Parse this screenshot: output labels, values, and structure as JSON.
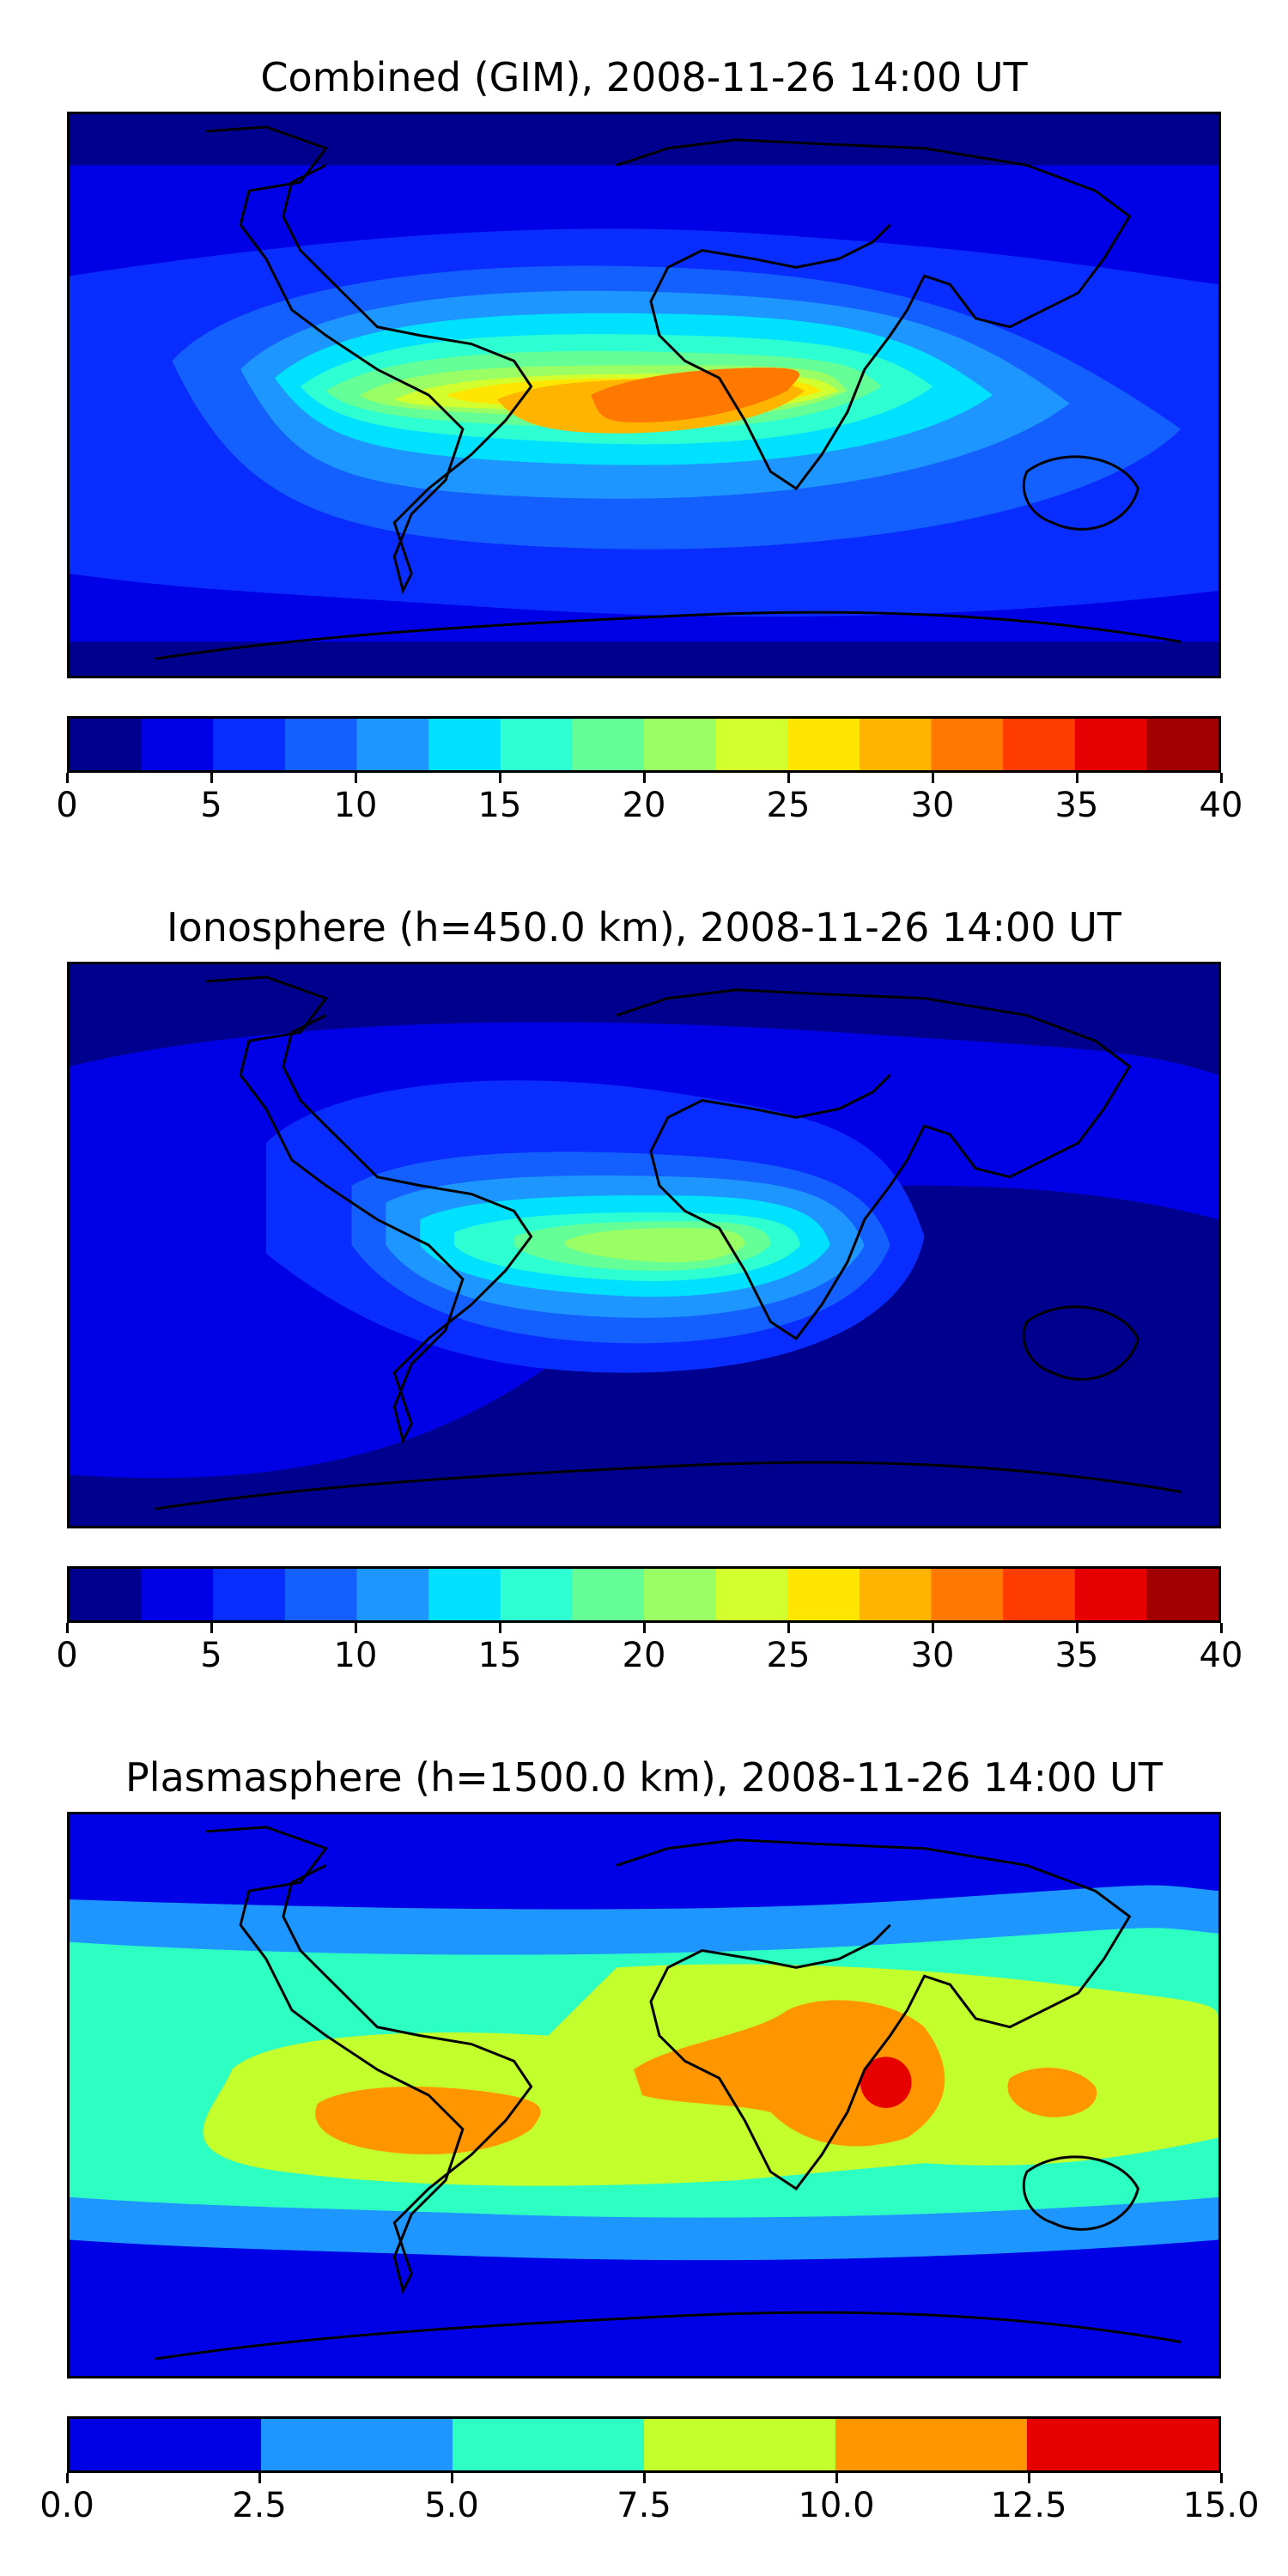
{
  "panels": [
    {
      "title": "Combined (GIM), 2008-11-26 14:00 UT",
      "colorbar": {
        "range": [
          0,
          40
        ],
        "step": 2.5,
        "ticks": [
          "0",
          "5",
          "10",
          "15",
          "20",
          "25",
          "30",
          "35",
          "40"
        ],
        "colors": [
          "#00008f",
          "#0000e6",
          "#0a2dff",
          "#1460ff",
          "#1e96ff",
          "#00e1ff",
          "#2dffd2",
          "#64ff96",
          "#9aff64",
          "#d2ff2d",
          "#ffe600",
          "#ffb400",
          "#ff7800",
          "#ff3c00",
          "#e60000",
          "#a00000"
        ]
      }
    },
    {
      "title": "Ionosphere  (h=450.0 km), 2008-11-26 14:00 UT",
      "colorbar": {
        "range": [
          0,
          40
        ],
        "step": 2.5,
        "ticks": [
          "0",
          "5",
          "10",
          "15",
          "20",
          "25",
          "30",
          "35",
          "40"
        ],
        "colors": [
          "#00008f",
          "#0000e6",
          "#0a2dff",
          "#1460ff",
          "#1e96ff",
          "#00e1ff",
          "#2dffd2",
          "#64ff96",
          "#9aff64",
          "#d2ff2d",
          "#ffe600",
          "#ffb400",
          "#ff7800",
          "#ff3c00",
          "#e60000",
          "#a00000"
        ]
      }
    },
    {
      "title": "Plasmasphere (h=1500.0 km), 2008-11-26 14:00 UT",
      "colorbar": {
        "range": [
          0,
          15
        ],
        "step": 2.5,
        "ticks": [
          "0.0",
          "2.5",
          "5.0",
          "7.5",
          "10.0",
          "12.5",
          "15.0"
        ],
        "colors": [
          "#0000e6",
          "#1e96ff",
          "#2dffc3",
          "#c3ff2d",
          "#ff9600",
          "#e60000"
        ]
      }
    }
  ]
}
